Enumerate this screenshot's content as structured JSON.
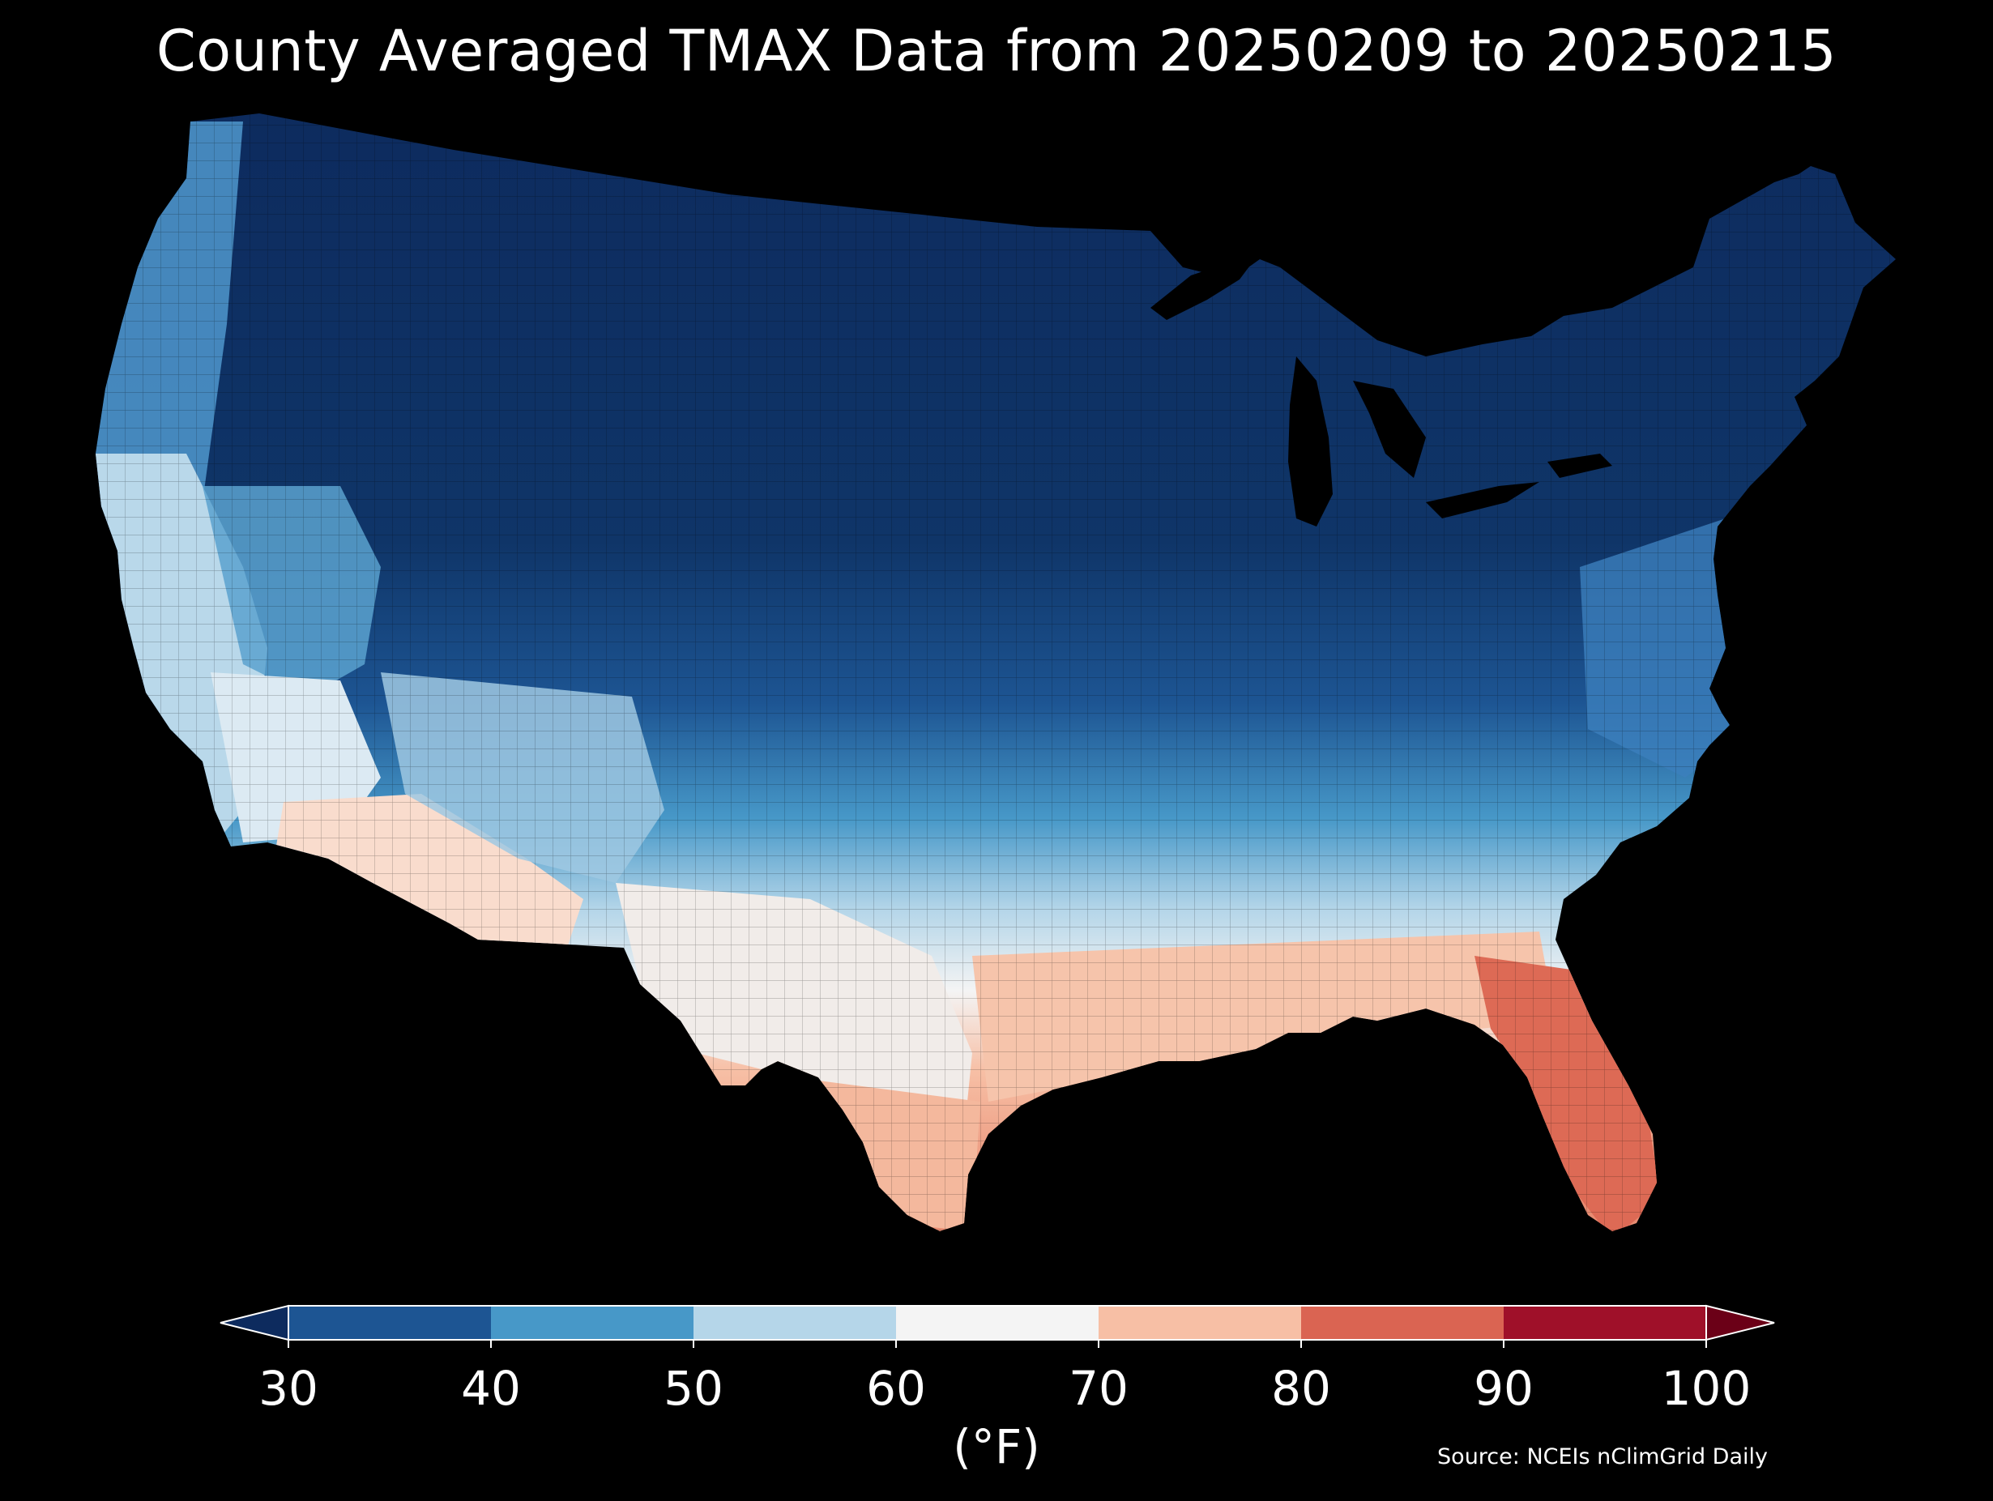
{
  "title": "County Averaged TMAX Data from 20250209 to 20250215",
  "map": {
    "region": "Contiguous United States",
    "boundaries": "county",
    "background": "#000000",
    "regions": [
      {
        "name": "pacific-northwest",
        "tmax_band": "30-50"
      },
      {
        "name": "california-coast",
        "tmax_band": "50-70"
      },
      {
        "name": "desert-southwest",
        "tmax_band": "60-80"
      },
      {
        "name": "northern-tier",
        "tmax_band": "<30"
      },
      {
        "name": "central-plains",
        "tmax_band": "30-50"
      },
      {
        "name": "southern-plains",
        "tmax_band": "50-70"
      },
      {
        "name": "gulf-coast",
        "tmax_band": "70-80"
      },
      {
        "name": "florida-peninsula",
        "tmax_band": "80-90"
      },
      {
        "name": "northeast",
        "tmax_band": "<40"
      }
    ]
  },
  "colorbar": {
    "label": "(°F)",
    "ticks": [
      "30",
      "40",
      "50",
      "60",
      "70",
      "80",
      "90",
      "100"
    ],
    "extend": "both",
    "under_color": "#0d2b5e",
    "over_color": "#6b0017",
    "bins": [
      {
        "range": "30-40",
        "color": "#1d5593"
      },
      {
        "range": "40-50",
        "color": "#4798c8"
      },
      {
        "range": "50-60",
        "color": "#b5d6e9"
      },
      {
        "range": "60-70",
        "color": "#f4f4f4"
      },
      {
        "range": "70-80",
        "color": "#f7bfa5"
      },
      {
        "range": "80-90",
        "color": "#da6452"
      },
      {
        "range": "90-100",
        "color": "#9f1029"
      }
    ]
  },
  "source": "Source: NCEIs nClimGrid Daily"
}
